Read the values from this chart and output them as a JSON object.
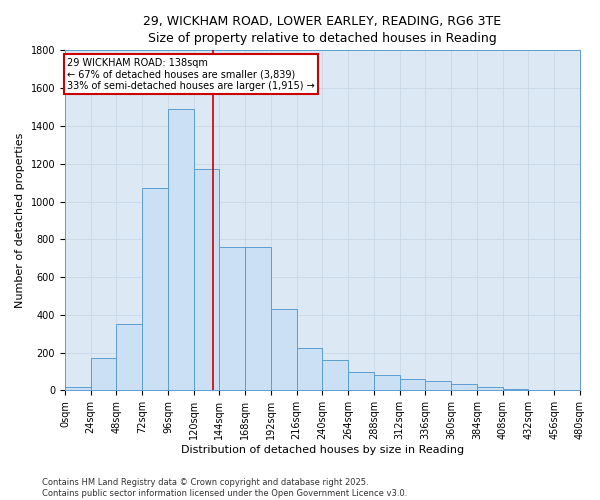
{
  "title_line1": "29, WICKHAM ROAD, LOWER EARLEY, READING, RG6 3TE",
  "title_line2": "Size of property relative to detached houses in Reading",
  "xlabel": "Distribution of detached houses by size in Reading",
  "ylabel": "Number of detached properties",
  "bar_edges": [
    0,
    24,
    48,
    72,
    96,
    120,
    144,
    168,
    192,
    216,
    240,
    264,
    288,
    312,
    336,
    360,
    384,
    408,
    432,
    456,
    480
  ],
  "bar_heights": [
    20,
    170,
    350,
    1070,
    1490,
    1170,
    760,
    760,
    430,
    225,
    160,
    100,
    80,
    60,
    50,
    35,
    20,
    10,
    5,
    0
  ],
  "bar_facecolor": "#cce0f5",
  "bar_edgecolor": "#5a9fd4",
  "property_size": 138,
  "vline_color": "#cc0000",
  "annotation_text": "29 WICKHAM ROAD: 138sqm\n← 67% of detached houses are smaller (3,839)\n33% of semi-detached houses are larger (1,915) →",
  "annotation_box_edgecolor": "#cc0000",
  "annotation_box_facecolor": "#ffffff",
  "ylim": [
    0,
    1800
  ],
  "yticks": [
    0,
    200,
    400,
    600,
    800,
    1000,
    1200,
    1400,
    1600,
    1800
  ],
  "grid_color": "#c8d8e8",
  "bg_color": "#dce8f4",
  "footnote": "Contains HM Land Registry data © Crown copyright and database right 2025.\nContains public sector information licensed under the Open Government Licence v3.0.",
  "title_fontsize": 9,
  "axis_label_fontsize": 8,
  "tick_fontsize": 7,
  "annotation_fontsize": 7,
  "footnote_fontsize": 6
}
